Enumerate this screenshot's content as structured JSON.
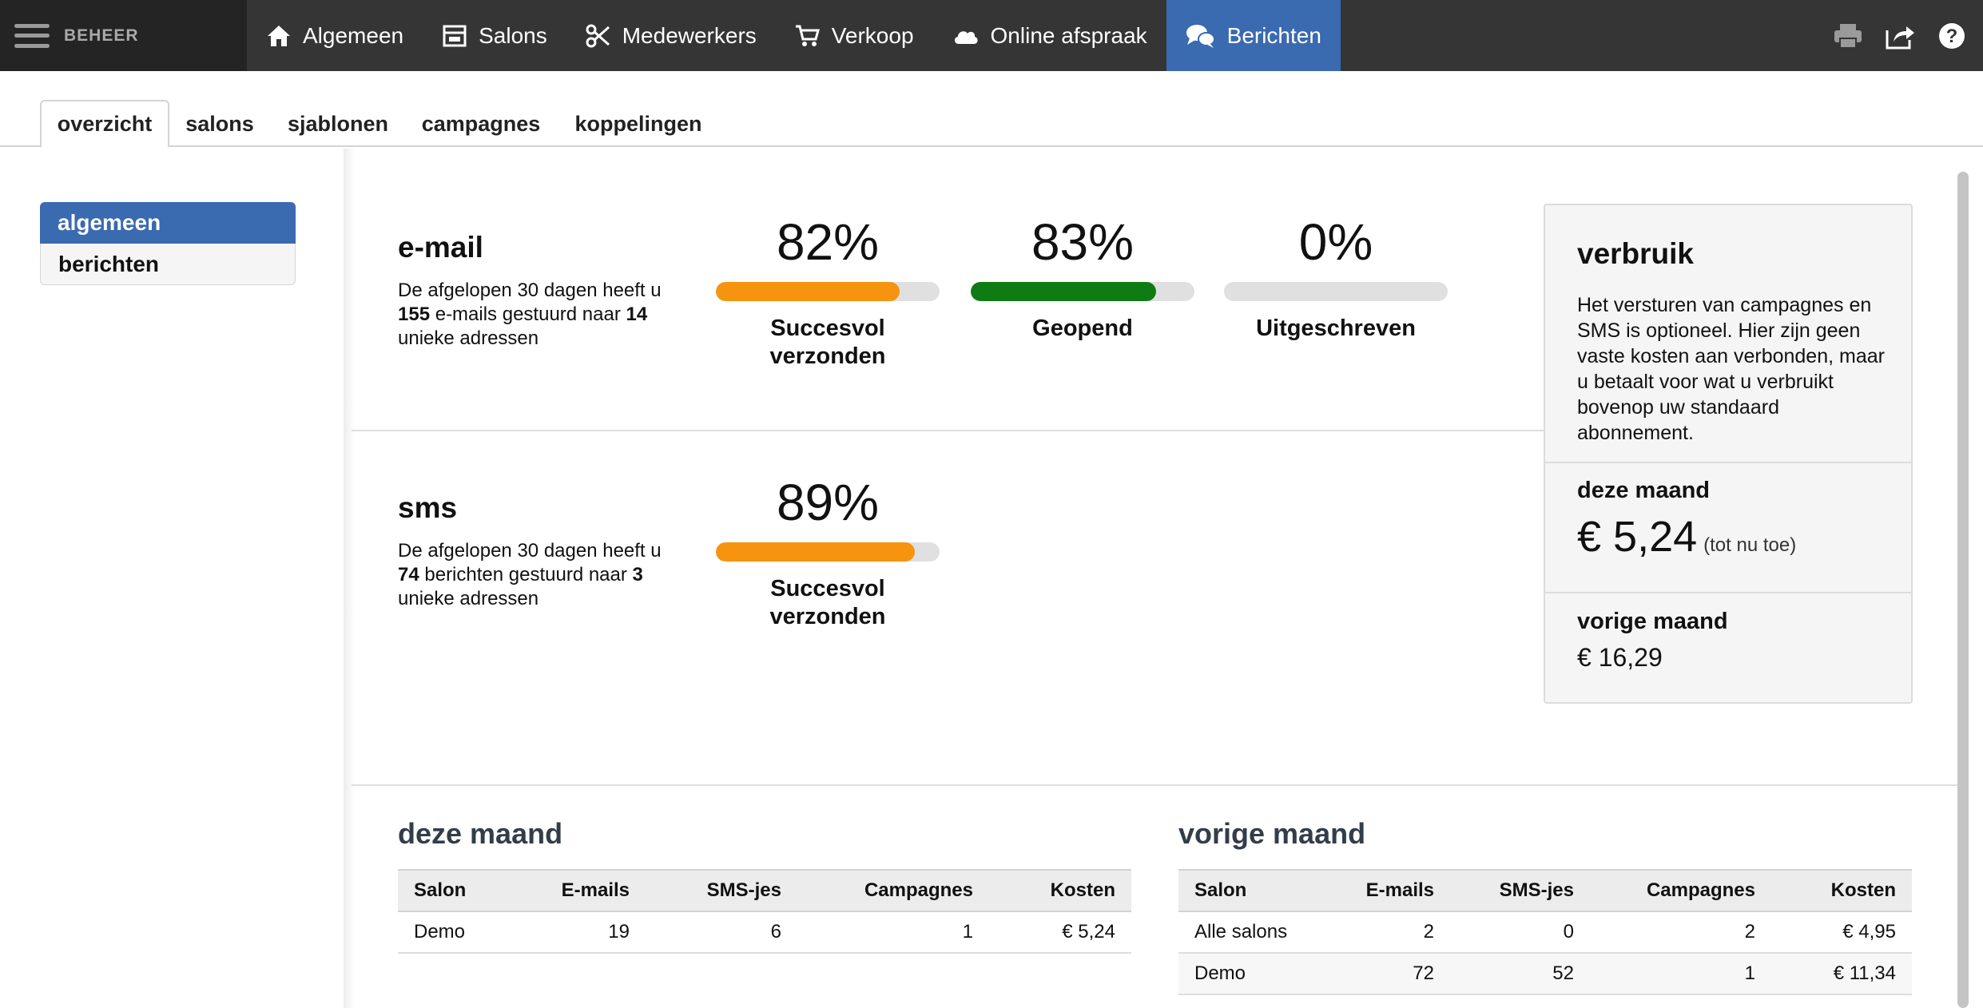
{
  "topbar": {
    "brand": "BEHEER",
    "nav": [
      {
        "label": "Algemeen",
        "icon": "home-icon"
      },
      {
        "label": "Salons",
        "icon": "store-icon"
      },
      {
        "label": "Medewerkers",
        "icon": "scissors-icon"
      },
      {
        "label": "Verkoop",
        "icon": "cart-icon"
      },
      {
        "label": "Online afspraak",
        "icon": "cloud-icon"
      },
      {
        "label": "Berichten",
        "icon": "chat-bubbles-icon",
        "active": true
      }
    ],
    "right_icons": [
      "printer-icon",
      "share-icon",
      "help-icon"
    ]
  },
  "tabs": [
    {
      "label": "overzicht",
      "active": true
    },
    {
      "label": "salons"
    },
    {
      "label": "sjablonen"
    },
    {
      "label": "campagnes"
    },
    {
      "label": "koppelingen"
    }
  ],
  "sidebar": {
    "items": [
      {
        "label": "algemeen",
        "active": true
      },
      {
        "label": "berichten"
      }
    ]
  },
  "email": {
    "title": "e-mail",
    "desc_1": "De afgelopen 30 dagen heeft u ",
    "count": "155",
    "desc_2": " e-mails gestuurd naar ",
    "unique": "14",
    "desc_3": " unieke adressen",
    "stats": [
      {
        "pct": "82%",
        "value": 0.82,
        "label": "Succesvol verzonden",
        "color": "#f7940f"
      },
      {
        "pct": "83%",
        "value": 0.83,
        "label": "Geopend",
        "color": "#0e7c13"
      },
      {
        "pct": "0%",
        "value": 0,
        "label": "Uitgeschreven",
        "color": "#f7940f"
      }
    ]
  },
  "sms": {
    "title": "sms",
    "desc_1": "De afgelopen 30 dagen heeft u ",
    "count": "74",
    "desc_2": " berichten gestuurd naar ",
    "unique": "3",
    "desc_3": " unieke adressen",
    "stats": [
      {
        "pct": "89%",
        "value": 0.89,
        "label": "Succesvol verzonden",
        "color": "#f7940f"
      }
    ]
  },
  "usage": {
    "title": "verbruik",
    "text": "Het versturen van campagnes en SMS is optioneel. Hier zijn geen vaste kosten aan verbonden, maar u betaalt voor wat u verbruikt bovenop uw standaard abonnement.",
    "this_month_label": "deze maand",
    "this_month_value": "€ 5,24",
    "this_month_note": "(tot nu toe)",
    "prev_month_label": "vorige maand",
    "prev_month_value": "€ 16,29"
  },
  "tables": {
    "current": {
      "title": "deze maand",
      "headers": [
        "Salon",
        "E-mails",
        "SMS-jes",
        "Campagnes",
        "Kosten"
      ],
      "rows": [
        [
          "Demo",
          "19",
          "6",
          "1",
          "€ 5,24"
        ]
      ]
    },
    "previous": {
      "title": "vorige maand",
      "headers": [
        "Salon",
        "E-mails",
        "SMS-jes",
        "Campagnes",
        "Kosten"
      ],
      "rows": [
        [
          "Alle salons",
          "2",
          "0",
          "2",
          "€ 4,95"
        ],
        [
          "Demo",
          "72",
          "52",
          "1",
          "€ 11,34"
        ]
      ]
    }
  }
}
